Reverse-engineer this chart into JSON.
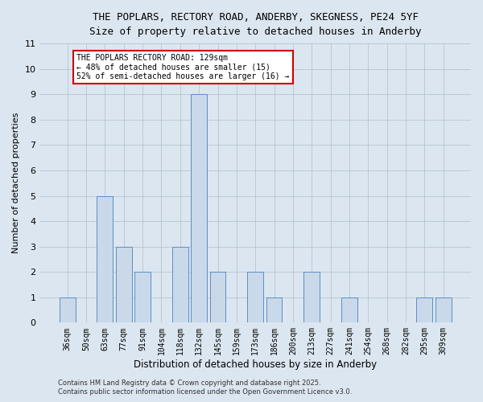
{
  "title_line1": "THE POPLARS, RECTORY ROAD, ANDERBY, SKEGNESS, PE24 5YF",
  "title_line2": "Size of property relative to detached houses in Anderby",
  "xlabel": "Distribution of detached houses by size in Anderby",
  "ylabel": "Number of detached properties",
  "categories": [
    "36sqm",
    "50sqm",
    "63sqm",
    "77sqm",
    "91sqm",
    "104sqm",
    "118sqm",
    "132sqm",
    "145sqm",
    "159sqm",
    "173sqm",
    "186sqm",
    "200sqm",
    "213sqm",
    "227sqm",
    "241sqm",
    "254sqm",
    "268sqm",
    "282sqm",
    "295sqm",
    "309sqm"
  ],
  "values": [
    1,
    0,
    5,
    3,
    2,
    0,
    3,
    9,
    2,
    0,
    2,
    1,
    0,
    2,
    0,
    1,
    0,
    0,
    0,
    1,
    1
  ],
  "highlighted_index": 7,
  "bar_color": "#c9d9ea",
  "bar_edge_color": "#5b8ec4",
  "ylim": [
    0,
    11
  ],
  "yticks": [
    0,
    1,
    2,
    3,
    4,
    5,
    6,
    7,
    8,
    9,
    10,
    11
  ],
  "annotation_text": "THE POPLARS RECTORY ROAD: 129sqm\n← 48% of detached houses are smaller (15)\n52% of semi-detached houses are larger (16) →",
  "annotation_box_color": "#ffffff",
  "annotation_box_edge": "#cc0000",
  "footer_line1": "Contains HM Land Registry data © Crown copyright and database right 2025.",
  "footer_line2": "Contains public sector information licensed under the Open Government Licence v3.0.",
  "background_color": "#dce6f0",
  "plot_bg_color": "#dce6f0"
}
